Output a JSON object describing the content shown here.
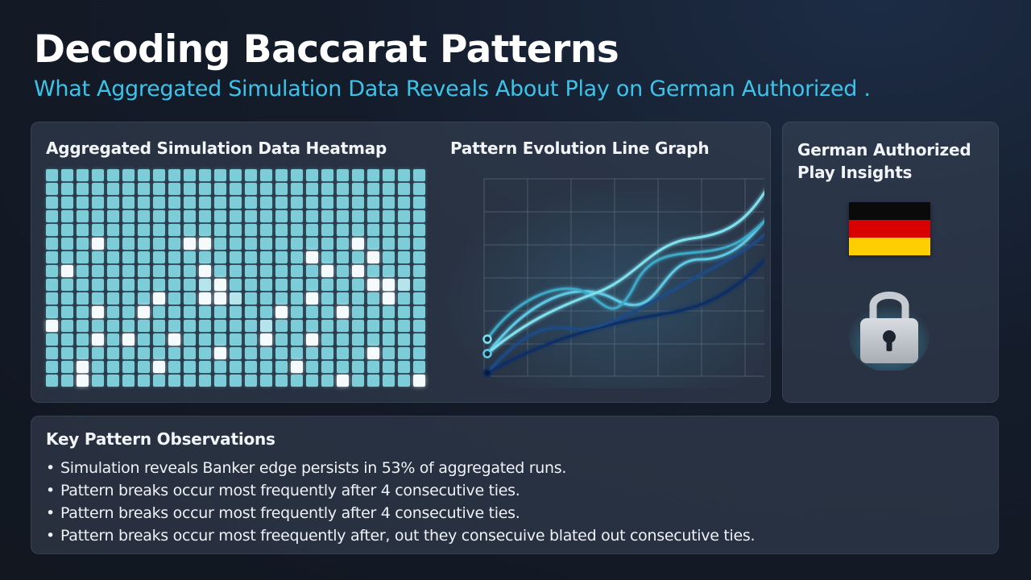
{
  "header": {
    "title": "Decoding Baccarat Patterns",
    "subtitle": "What Aggregated Simulation Data Reveals About Play on German Authorized ."
  },
  "heatmap_panel": {
    "title": "Aggregated Simulation Data Heatmap",
    "columns": 25,
    "rows": 16,
    "highlight_cells": [
      [
        5,
        3
      ],
      [
        5,
        9
      ],
      [
        5,
        10
      ],
      [
        5,
        20
      ],
      [
        6,
        17
      ],
      [
        6,
        21
      ],
      [
        7,
        1
      ],
      [
        7,
        10
      ],
      [
        7,
        18
      ],
      [
        7,
        20
      ],
      [
        8,
        11
      ],
      [
        8,
        21
      ],
      [
        8,
        22
      ],
      [
        9,
        7
      ],
      [
        9,
        10
      ],
      [
        9,
        11
      ],
      [
        9,
        17
      ],
      [
        9,
        22
      ],
      [
        10,
        3
      ],
      [
        10,
        6
      ],
      [
        10,
        15
      ],
      [
        10,
        19
      ],
      [
        11,
        0
      ],
      [
        12,
        3
      ],
      [
        12,
        5
      ],
      [
        12,
        8
      ],
      [
        12,
        14
      ],
      [
        12,
        17
      ],
      [
        13,
        11
      ],
      [
        13,
        21
      ],
      [
        14,
        2
      ],
      [
        14,
        7
      ],
      [
        14,
        16
      ],
      [
        15,
        2
      ],
      [
        15,
        19
      ],
      [
        15,
        24
      ]
    ],
    "mid_cells": [
      [
        8,
        10
      ],
      [
        8,
        23
      ],
      [
        9,
        12
      ],
      [
        11,
        14
      ]
    ]
  },
  "line_panel": {
    "title": "Pattern Evolution Line Graph",
    "series_colors": [
      "#7fe0ee",
      "#3ea9c8",
      "#5ec8e4",
      "#1d4b86",
      "#0f2d66"
    ]
  },
  "side_panel": {
    "title": "German Authorized Play Insights",
    "flag_colors": [
      "#0a0a0a",
      "#d90000",
      "#ffce00"
    ],
    "lock_icon": "padlock-icon"
  },
  "observations": {
    "title": "Key Pattern Observations",
    "bullet": "•",
    "items": [
      "Simulation reveals Banker edge persists in 53% of aggregated runs.",
      "Pattern breaks occur most frequently after 4 consecutive ties.",
      "Pattern breaks occur most frequently after 4 consecutive ties.",
      "Pattern breaks occur most freequently after, out they consecuive blated out consecutive ties."
    ]
  }
}
